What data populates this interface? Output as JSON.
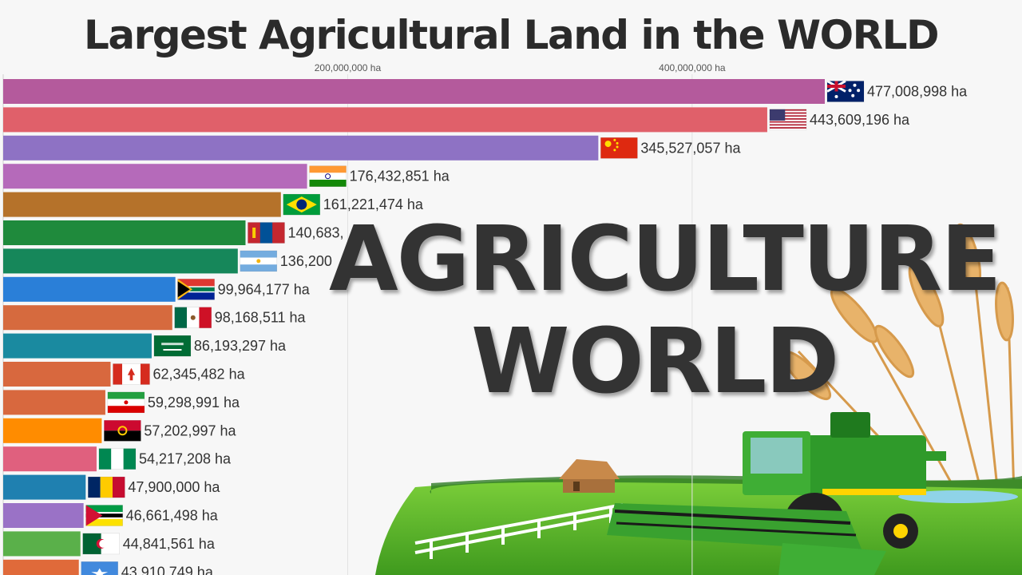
{
  "title": "Largest Agricultural Land in the WORLD",
  "overlay": {
    "line1": "AGRICULTURE",
    "line2": "WORLD"
  },
  "chart_data": {
    "type": "bar",
    "orientation": "horizontal",
    "title": "Largest Agricultural Land in the WORLD",
    "xlim": [
      0,
      477008998
    ],
    "axis_ticks": [
      "200,000,000 ha",
      "400,000,000 ha"
    ],
    "axis_tick_values": [
      200000000,
      400000000
    ],
    "grid": true,
    "bars": [
      {
        "value": 477008998,
        "label": "477,008,998 ha",
        "color": "#b45a9c",
        "flag": "flag-australia-icon"
      },
      {
        "value": 443609196,
        "label": "443,609,196 ha",
        "color": "#e0606a",
        "flag": "flag-usa-icon"
      },
      {
        "value": 345527057,
        "label": "345,527,057 ha",
        "color": "#8e72c4",
        "flag": "flag-china-icon"
      },
      {
        "value": 176432851,
        "label": "176,432,851 ha",
        "color": "#b56aba",
        "flag": "flag-india-icon"
      },
      {
        "value": 161221474,
        "label": "161,221,474 ha",
        "color": "#b5722a",
        "flag": "flag-brazil-icon"
      },
      {
        "value": 140683000,
        "label": "140,683,",
        "color": "#1f8a3c",
        "flag": "flag-mongolia-icon"
      },
      {
        "value": 136200000,
        "label": "136,200",
        "color": "#16875a",
        "flag": "flag-argentina-icon"
      },
      {
        "value": 99964177,
        "label": "99,964,177 ha",
        "color": "#2a7fd8",
        "flag": "flag-south-africa-icon"
      },
      {
        "value": 98168511,
        "label": "98,168,511 ha",
        "color": "#d66a3e",
        "flag": "flag-mexico-icon"
      },
      {
        "value": 86193297,
        "label": "86,193,297 ha",
        "color": "#1a8aa0",
        "flag": "flag-saudi-arabia-icon"
      },
      {
        "value": 62345482,
        "label": "62,345,482 ha",
        "color": "#d8683e",
        "flag": "flag-canada-icon"
      },
      {
        "value": 59298991,
        "label": "59,298,991 ha",
        "color": "#d8683e",
        "flag": "flag-iran-icon"
      },
      {
        "value": 57202997,
        "label": "57,202,997 ha",
        "color": "#ff8c00",
        "flag": "flag-angola-icon"
      },
      {
        "value": 54217208,
        "label": "54,217,208 ha",
        "color": "#e0607e",
        "flag": "flag-nigeria-icon"
      },
      {
        "value": 47900000,
        "label": "47,900,000 ha",
        "color": "#1f80b0",
        "flag": "flag-chad-icon"
      },
      {
        "value": 46661498,
        "label": "46,661,498 ha",
        "color": "#9a72c6",
        "flag": "flag-mozambique-icon"
      },
      {
        "value": 44841561,
        "label": "44,841,561 ha",
        "color": "#5ab04a",
        "flag": "flag-algeria-icon"
      },
      {
        "value": 43910749,
        "label": "43,910,749 ha",
        "color": "#e06a3a",
        "flag": "flag-somalia-icon"
      }
    ]
  }
}
